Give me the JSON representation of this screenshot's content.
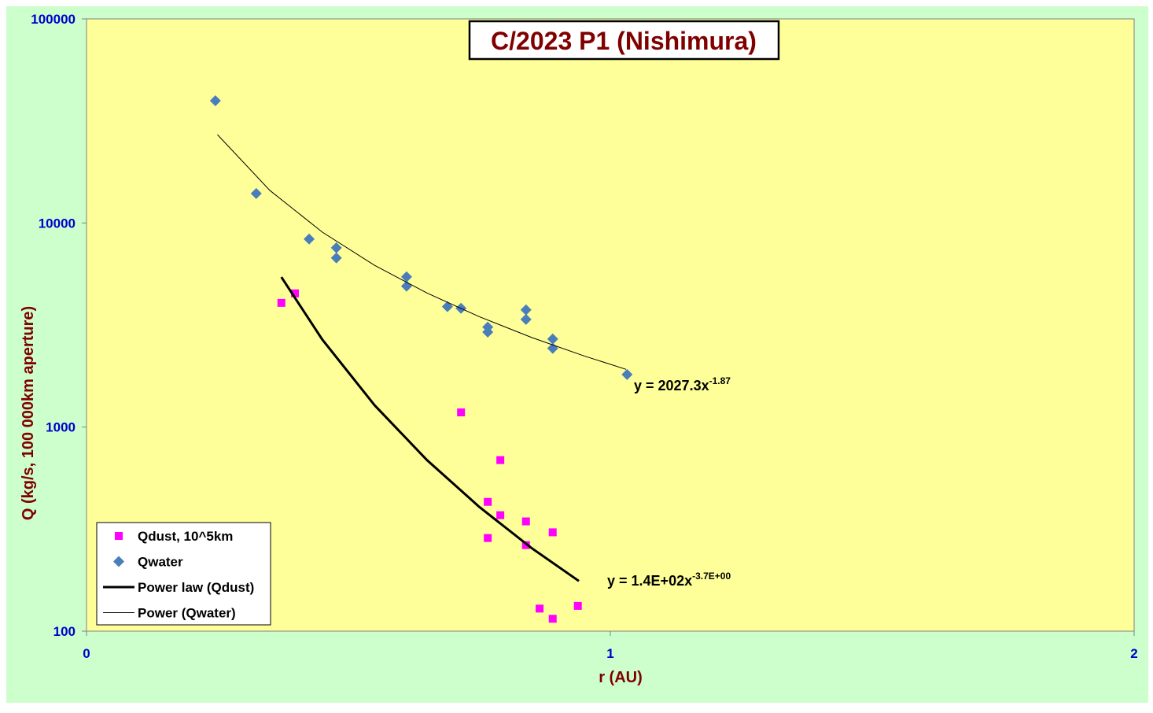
{
  "chart_data": {
    "type": "scatter",
    "title": "C/2023 P1 (Nishimura)",
    "x_label": "r (AU)",
    "y_label": "Q (kg/s, 100 000km aperture)",
    "xlim": [
      0,
      2
    ],
    "xticks": [
      0,
      1,
      2
    ],
    "ylim": [
      100,
      100000
    ],
    "yticks": [
      100,
      1000,
      10000,
      100000
    ],
    "y_scale": "log",
    "legend": "lower left",
    "series": [
      {
        "name": "Qdust, 10^5km",
        "type": "scatter",
        "marker": "square",
        "color": "#ff00ff",
        "x": [
          0.372,
          0.398,
          0.715,
          0.79,
          0.766,
          0.79,
          0.839,
          0.766,
          0.89,
          0.839,
          0.865,
          0.89,
          0.938
        ],
        "values": [
          4060,
          4520,
          1180,
          689,
          430,
          370,
          345,
          286,
          305,
          264,
          129,
          115,
          133
        ]
      },
      {
        "name": "Qwater",
        "type": "scatter",
        "marker": "diamond",
        "color": "#4a7ebb",
        "x": [
          0.246,
          0.324,
          0.425,
          0.477,
          0.477,
          0.611,
          0.611,
          0.689,
          0.715,
          0.766,
          0.766,
          0.839,
          0.839,
          0.89,
          0.89,
          1.032
        ],
        "values": [
          39700,
          13950,
          8340,
          7560,
          6740,
          5450,
          4900,
          3890,
          3820,
          3090,
          2920,
          3750,
          3370,
          2700,
          2430,
          1810
        ]
      },
      {
        "name": "Power law (Qdust)",
        "type": "line",
        "color": "#000000",
        "width": 3,
        "x": [
          0.372,
          0.45,
          0.55,
          0.65,
          0.75,
          0.85,
          0.94
        ],
        "values": [
          5430,
          2687,
          1279,
          689,
          406,
          255,
          176
        ]
      },
      {
        "name": "Power (Qwater)",
        "type": "line",
        "color": "#000000",
        "width": 1,
        "x": [
          0.25,
          0.35,
          0.45,
          0.55,
          0.65,
          0.75,
          0.85,
          0.95,
          1.03
        ],
        "values": [
          27080,
          14440,
          9025,
          6200,
          4537,
          3472,
          2747,
          2231,
          1918
        ]
      }
    ],
    "annotations": [
      {
        "text": "y = 2027.3x",
        "superscript": "-1.87"
      },
      {
        "text": "y = 1.4E+02x",
        "superscript": "-3.7E+00"
      }
    ]
  }
}
